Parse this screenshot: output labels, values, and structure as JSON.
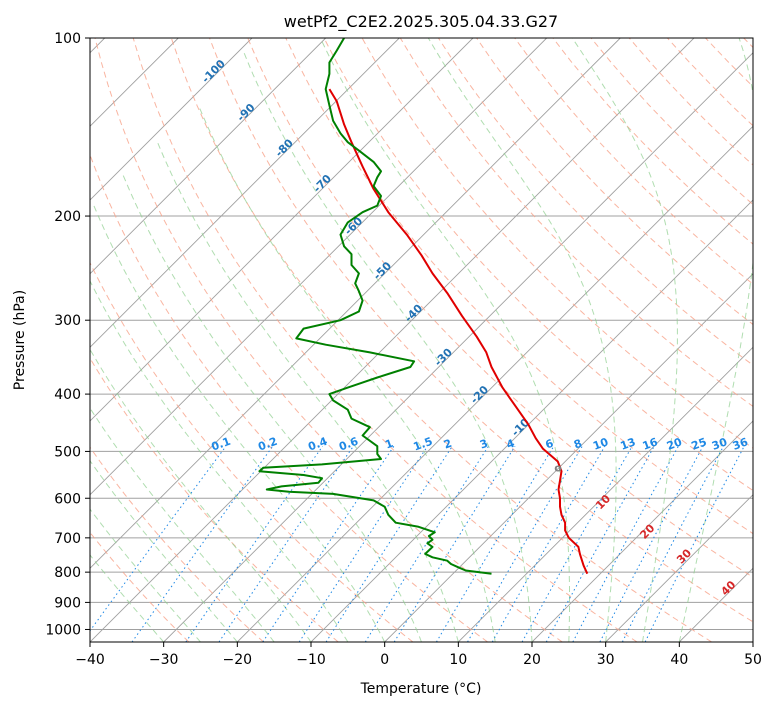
{
  "chart_data": {
    "type": "line",
    "title": "wetPf2_C2E2.2025.305.04.33.G27",
    "xlabel": "Temperature (°C)",
    "ylabel": "Pressure (hPa)",
    "xlim": [
      -40,
      50
    ],
    "ylim": [
      1050,
      100
    ],
    "y_scale": "log",
    "grid": true,
    "x_ticks": [
      "−40",
      "−30",
      "−20",
      "−10",
      "0",
      "10",
      "20",
      "30",
      "40",
      "50"
    ],
    "y_ticks": [
      "100",
      "200",
      "300",
      "400",
      "500",
      "600",
      "700",
      "800",
      "900",
      "1000"
    ],
    "colors": {
      "temperature": "#e00000",
      "dewpoint": "#008000",
      "isotherm": "#a0a0a0",
      "dry_adiabat": "#f7a38a",
      "moist_adiabat": "#8fcf8f",
      "mixing_ratio": "#1e88e5",
      "ccl_marker": "#808080"
    },
    "series": [
      {
        "key": "temperature",
        "points": [
          [
            27.5,
            805
          ],
          [
            27,
            780
          ],
          [
            26.5,
            745
          ],
          [
            26.3,
            725
          ],
          [
            25,
            700
          ],
          [
            24.5,
            680
          ],
          [
            24.5,
            660
          ],
          [
            24,
            640
          ],
          [
            23.8,
            620
          ],
          [
            23.8,
            600
          ],
          [
            23.6,
            580
          ],
          [
            23.8,
            560
          ],
          [
            24,
            540
          ],
          [
            23.5,
            520
          ],
          [
            21.5,
            495
          ],
          [
            20.5,
            475
          ],
          [
            19.5,
            450
          ],
          [
            17.8,
            420
          ],
          [
            16,
            390
          ],
          [
            14.5,
            360
          ],
          [
            13.8,
            340
          ],
          [
            12.5,
            320
          ],
          [
            10.5,
            295
          ],
          [
            8.5,
            270
          ],
          [
            6.5,
            250
          ],
          [
            5,
            233
          ],
          [
            3,
            215
          ],
          [
            0.5,
            197
          ],
          [
            -1.5,
            180
          ],
          [
            -3,
            165
          ],
          [
            -4.5,
            150
          ],
          [
            -5.5,
            140
          ],
          [
            -6.5,
            128
          ],
          [
            -7.5,
            122
          ]
        ]
      },
      {
        "key": "dewpoint",
        "points": [
          [
            14.5,
            805
          ],
          [
            11,
            795
          ],
          [
            10,
            785
          ],
          [
            9,
            775
          ],
          [
            8.5,
            765
          ],
          [
            6.5,
            755
          ],
          [
            5.5,
            745
          ],
          [
            6,
            735
          ],
          [
            6.5,
            725
          ],
          [
            5.8,
            715
          ],
          [
            6.5,
            705
          ],
          [
            6,
            695
          ],
          [
            6.8,
            685
          ],
          [
            4.5,
            670
          ],
          [
            1.5,
            660
          ],
          [
            0.5,
            640
          ],
          [
            0,
            620
          ],
          [
            -1.5,
            605
          ],
          [
            -7,
            590
          ],
          [
            -13,
            585
          ],
          [
            -16,
            580
          ],
          [
            -14,
            573
          ],
          [
            -9,
            565
          ],
          [
            -8.5,
            555
          ],
          [
            -11,
            548
          ],
          [
            -17,
            540
          ],
          [
            -16.5,
            533
          ],
          [
            -8.5,
            526
          ],
          [
            -0.5,
            515
          ],
          [
            -1,
            505
          ],
          [
            -1,
            490
          ],
          [
            -3,
            470
          ],
          [
            -2,
            455
          ],
          [
            -4.5,
            440
          ],
          [
            -5,
            425
          ],
          [
            -7,
            410
          ],
          [
            -7.5,
            400
          ],
          [
            -5,
            390
          ],
          [
            -1,
            375
          ],
          [
            3.5,
            360
          ],
          [
            4,
            352
          ],
          [
            -2,
            340
          ],
          [
            -8,
            330
          ],
          [
            -12,
            322
          ],
          [
            -11,
            310
          ],
          [
            -6,
            300
          ],
          [
            -3.5,
            290
          ],
          [
            -3,
            278
          ],
          [
            -3.5,
            268
          ],
          [
            -4,
            260
          ],
          [
            -3.5,
            250
          ],
          [
            -4.5,
            242
          ],
          [
            -4.5,
            232
          ],
          [
            -5.5,
            225
          ],
          [
            -6,
            215
          ],
          [
            -5,
            205
          ],
          [
            -3,
            197
          ],
          [
            -1,
            192
          ],
          [
            -0.5,
            185
          ],
          [
            -1.5,
            178
          ],
          [
            -1,
            172
          ],
          [
            -0.5,
            168
          ],
          [
            -1.5,
            162
          ],
          [
            -3.5,
            155
          ],
          [
            -5,
            150
          ],
          [
            -6,
            145
          ],
          [
            -7,
            138
          ],
          [
            -7.5,
            130
          ],
          [
            -8,
            122
          ],
          [
            -7.5,
            115
          ],
          [
            -7.5,
            110
          ],
          [
            -6.5,
            105
          ],
          [
            -5.5,
            100
          ]
        ]
      }
    ],
    "ccl_marker": {
      "label": "o",
      "point": [
        23.8,
        530
      ]
    },
    "dry_adiabat_labels": [
      "10",
      "20",
      "30",
      "40"
    ],
    "isotherm_labels": [
      "-100",
      "-90",
      "-80",
      "-70",
      "-60",
      "-50",
      "-40",
      "-30",
      "-20",
      "-10"
    ],
    "mixing_ratio_labels": [
      "0.1",
      "0.2",
      "0.4",
      "0.6",
      "1",
      "1.5",
      "2",
      "3",
      "4",
      "6",
      "8",
      "10",
      "13",
      "16",
      "20",
      "25",
      "30",
      "36"
    ]
  }
}
